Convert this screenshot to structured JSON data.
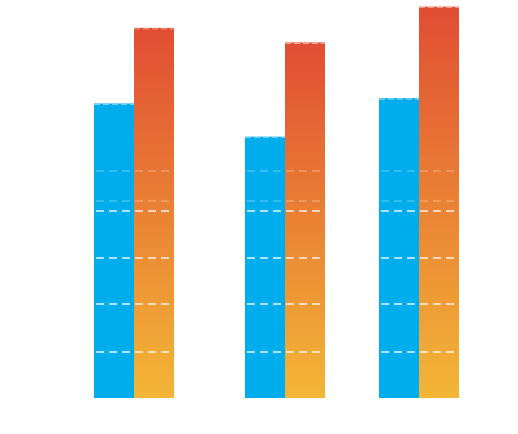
{
  "chart_data": {
    "type": "bar",
    "title": "",
    "xlabel": "",
    "ylabel": "",
    "categories": [
      "",
      "",
      ""
    ],
    "series": [
      {
        "values": [
          222,
          197,
          226
        ]
      },
      {
        "values": [
          279,
          268,
          295
        ]
      }
    ],
    "ylim": [
      0,
      300
    ],
    "grid": true,
    "legend": "none"
  },
  "colors": {
    "series_1": "#00adec",
    "series_2_top": "#e14d33",
    "series_2_bottom": "#f3b636",
    "gridline": "#ffffff",
    "background": "#ffffff"
  }
}
